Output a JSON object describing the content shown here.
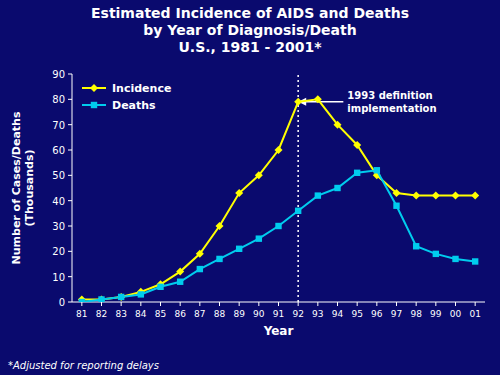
{
  "chart_data": {
    "type": "line",
    "title": "Estimated Incidence of AIDS and Deaths\nby Year of Diagnosis/Death\nU.S., 1981 - 2001*",
    "x_label": "Year",
    "y_label": "Number of Cases/Deaths\n(Thousands)",
    "footnote": "*Adjusted for reporting delays",
    "categories": [
      "81",
      "82",
      "83",
      "84",
      "85",
      "86",
      "87",
      "88",
      "89",
      "90",
      "91",
      "92",
      "93",
      "94",
      "95",
      "96",
      "97",
      "98",
      "99",
      "00",
      "01"
    ],
    "series": [
      {
        "name": "Incidence",
        "color": "#ffff00",
        "marker": "diamond",
        "values": [
          1,
          1,
          2,
          4,
          7,
          12,
          19,
          30,
          43,
          50,
          60,
          79,
          80,
          70,
          62,
          50,
          43,
          42,
          42,
          42,
          42
        ]
      },
      {
        "name": "Deaths",
        "color": "#00ccee",
        "marker": "square",
        "values": [
          0,
          1,
          2,
          3,
          6,
          8,
          13,
          17,
          21,
          25,
          30,
          36,
          42,
          45,
          51,
          52,
          38,
          22,
          19,
          17,
          16
        ]
      }
    ],
    "annotations": [
      {
        "text": "1993 definition\nimplementation",
        "x": "92",
        "y": 79
      }
    ],
    "ylim": [
      0,
      90
    ],
    "yticks": [
      0,
      10,
      20,
      30,
      40,
      50,
      60,
      70,
      80,
      90
    ],
    "legend": "upper left",
    "grid": false
  }
}
